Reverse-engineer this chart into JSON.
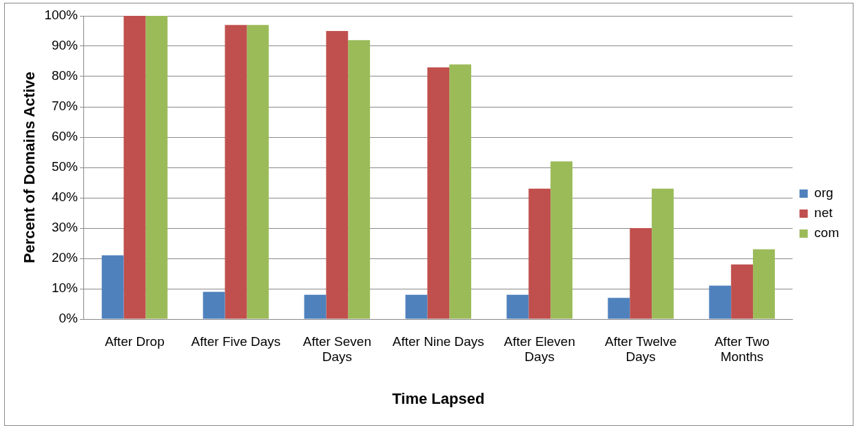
{
  "chart_data": {
    "type": "bar",
    "xlabel": "Time Lapsed",
    "ylabel": "Percent of Domains Active",
    "categories": [
      "After Drop",
      "After Five Days",
      "After Seven Days",
      "After Nine Days",
      "After Eleven Days",
      "After Twelve Days",
      "After Two Months"
    ],
    "series": [
      {
        "name": "org",
        "color": "#4f81bd",
        "values": [
          21,
          9,
          8,
          8,
          8,
          7,
          11
        ]
      },
      {
        "name": "net",
        "color": "#c0504d",
        "values": [
          100,
          97,
          95,
          83,
          43,
          30,
          18
        ]
      },
      {
        "name": "com",
        "color": "#9bbb59",
        "values": [
          100,
          97,
          92,
          84,
          52,
          43,
          23
        ]
      }
    ],
    "ylim": [
      0,
      100
    ],
    "yticks": [
      {
        "value": 0,
        "label": "0%"
      },
      {
        "value": 10,
        "label": "10%"
      },
      {
        "value": 20,
        "label": "20%"
      },
      {
        "value": 30,
        "label": "30%"
      },
      {
        "value": 40,
        "label": "40%"
      },
      {
        "value": 50,
        "label": "50%"
      },
      {
        "value": 60,
        "label": "60%"
      },
      {
        "value": 70,
        "label": "70%"
      },
      {
        "value": 80,
        "label": "80%"
      },
      {
        "value": 90,
        "label": "90%"
      },
      {
        "value": 100,
        "label": "100%"
      }
    ],
    "grid": "y",
    "legend": "right"
  }
}
